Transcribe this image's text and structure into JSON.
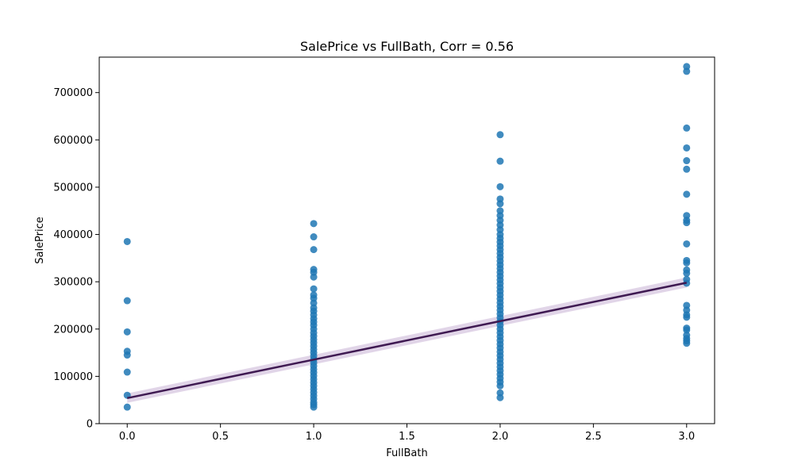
{
  "chart_data": {
    "type": "scatter",
    "title": "SalePrice vs FullBath, Corr = 0.56",
    "xlabel": "FullBath",
    "ylabel": "SalePrice",
    "xlim": [
      -0.15,
      3.15
    ],
    "ylim": [
      0,
      775000
    ],
    "x_ticks": [
      0.0,
      0.5,
      1.0,
      1.5,
      2.0,
      2.5,
      3.0
    ],
    "x_tick_labels": [
      "0.0",
      "0.5",
      "1.0",
      "1.5",
      "2.0",
      "2.5",
      "3.0"
    ],
    "y_ticks": [
      0,
      100000,
      200000,
      300000,
      400000,
      500000,
      600000,
      700000
    ],
    "y_tick_labels": [
      "0",
      "100000",
      "200000",
      "300000",
      "400000",
      "500000",
      "600000",
      "700000"
    ],
    "grid": false,
    "point_color": "#1f77b4",
    "line_color": "#3f1a52",
    "ci_color": "#c9b3d6",
    "points": [
      {
        "x": 0,
        "y": 385000
      },
      {
        "x": 0,
        "y": 260000
      },
      {
        "x": 0,
        "y": 194000
      },
      {
        "x": 0,
        "y": 153000
      },
      {
        "x": 0,
        "y": 145000
      },
      {
        "x": 0,
        "y": 109000
      },
      {
        "x": 0,
        "y": 60000
      },
      {
        "x": 0,
        "y": 35000
      },
      {
        "x": 1,
        "y": 423000
      },
      {
        "x": 1,
        "y": 395000
      },
      {
        "x": 1,
        "y": 368000
      },
      {
        "x": 1,
        "y": 326000
      },
      {
        "x": 1,
        "y": 320000
      },
      {
        "x": 1,
        "y": 310000
      },
      {
        "x": 1,
        "y": 285000
      },
      {
        "x": 1,
        "y": 272000
      },
      {
        "x": 1,
        "y": 265000
      },
      {
        "x": 1,
        "y": 255000
      },
      {
        "x": 1,
        "y": 245000
      },
      {
        "x": 1,
        "y": 238000
      },
      {
        "x": 1,
        "y": 230000
      },
      {
        "x": 1,
        "y": 222000
      },
      {
        "x": 1,
        "y": 215000
      },
      {
        "x": 1,
        "y": 208000
      },
      {
        "x": 1,
        "y": 200000
      },
      {
        "x": 1,
        "y": 192000
      },
      {
        "x": 1,
        "y": 185000
      },
      {
        "x": 1,
        "y": 178000
      },
      {
        "x": 1,
        "y": 171000
      },
      {
        "x": 1,
        "y": 164000
      },
      {
        "x": 1,
        "y": 157000
      },
      {
        "x": 1,
        "y": 150000
      },
      {
        "x": 1,
        "y": 143000
      },
      {
        "x": 1,
        "y": 136000
      },
      {
        "x": 1,
        "y": 129000
      },
      {
        "x": 1,
        "y": 122000
      },
      {
        "x": 1,
        "y": 115000
      },
      {
        "x": 1,
        "y": 108000
      },
      {
        "x": 1,
        "y": 101000
      },
      {
        "x": 1,
        "y": 94000
      },
      {
        "x": 1,
        "y": 87000
      },
      {
        "x": 1,
        "y": 80000
      },
      {
        "x": 1,
        "y": 73000
      },
      {
        "x": 1,
        "y": 66000
      },
      {
        "x": 1,
        "y": 59000
      },
      {
        "x": 1,
        "y": 52000
      },
      {
        "x": 1,
        "y": 45000
      },
      {
        "x": 1,
        "y": 40000
      },
      {
        "x": 1,
        "y": 35000
      },
      {
        "x": 2,
        "y": 611000
      },
      {
        "x": 2,
        "y": 555000
      },
      {
        "x": 2,
        "y": 501000
      },
      {
        "x": 2,
        "y": 475000
      },
      {
        "x": 2,
        "y": 465000
      },
      {
        "x": 2,
        "y": 450000
      },
      {
        "x": 2,
        "y": 440000
      },
      {
        "x": 2,
        "y": 430000
      },
      {
        "x": 2,
        "y": 420000
      },
      {
        "x": 2,
        "y": 410000
      },
      {
        "x": 2,
        "y": 400000
      },
      {
        "x": 2,
        "y": 392000
      },
      {
        "x": 2,
        "y": 384000
      },
      {
        "x": 2,
        "y": 376000
      },
      {
        "x": 2,
        "y": 368000
      },
      {
        "x": 2,
        "y": 360000
      },
      {
        "x": 2,
        "y": 352000
      },
      {
        "x": 2,
        "y": 344000
      },
      {
        "x": 2,
        "y": 336000
      },
      {
        "x": 2,
        "y": 328000
      },
      {
        "x": 2,
        "y": 320000
      },
      {
        "x": 2,
        "y": 312000
      },
      {
        "x": 2,
        "y": 304000
      },
      {
        "x": 2,
        "y": 296000
      },
      {
        "x": 2,
        "y": 288000
      },
      {
        "x": 2,
        "y": 280000
      },
      {
        "x": 2,
        "y": 272000
      },
      {
        "x": 2,
        "y": 264000
      },
      {
        "x": 2,
        "y": 256000
      },
      {
        "x": 2,
        "y": 248000
      },
      {
        "x": 2,
        "y": 240000
      },
      {
        "x": 2,
        "y": 232000
      },
      {
        "x": 2,
        "y": 224000
      },
      {
        "x": 2,
        "y": 216000
      },
      {
        "x": 2,
        "y": 208000
      },
      {
        "x": 2,
        "y": 200000
      },
      {
        "x": 2,
        "y": 192000
      },
      {
        "x": 2,
        "y": 184000
      },
      {
        "x": 2,
        "y": 176000
      },
      {
        "x": 2,
        "y": 168000
      },
      {
        "x": 2,
        "y": 160000
      },
      {
        "x": 2,
        "y": 152000
      },
      {
        "x": 2,
        "y": 144000
      },
      {
        "x": 2,
        "y": 136000
      },
      {
        "x": 2,
        "y": 128000
      },
      {
        "x": 2,
        "y": 120000
      },
      {
        "x": 2,
        "y": 112000
      },
      {
        "x": 2,
        "y": 104000
      },
      {
        "x": 2,
        "y": 96000
      },
      {
        "x": 2,
        "y": 88000
      },
      {
        "x": 2,
        "y": 80000
      },
      {
        "x": 2,
        "y": 65000
      },
      {
        "x": 2,
        "y": 55000
      },
      {
        "x": 3,
        "y": 755000
      },
      {
        "x": 3,
        "y": 745000
      },
      {
        "x": 3,
        "y": 625000
      },
      {
        "x": 3,
        "y": 583000
      },
      {
        "x": 3,
        "y": 556000
      },
      {
        "x": 3,
        "y": 538000
      },
      {
        "x": 3,
        "y": 485000
      },
      {
        "x": 3,
        "y": 440000
      },
      {
        "x": 3,
        "y": 430000
      },
      {
        "x": 3,
        "y": 425000
      },
      {
        "x": 3,
        "y": 380000
      },
      {
        "x": 3,
        "y": 345000
      },
      {
        "x": 3,
        "y": 340000
      },
      {
        "x": 3,
        "y": 325000
      },
      {
        "x": 3,
        "y": 318000
      },
      {
        "x": 3,
        "y": 305000
      },
      {
        "x": 3,
        "y": 297000
      },
      {
        "x": 3,
        "y": 250000
      },
      {
        "x": 3,
        "y": 240000
      },
      {
        "x": 3,
        "y": 230000
      },
      {
        "x": 3,
        "y": 225000
      },
      {
        "x": 3,
        "y": 202000
      },
      {
        "x": 3,
        "y": 198000
      },
      {
        "x": 3,
        "y": 187000
      },
      {
        "x": 3,
        "y": 180000
      },
      {
        "x": 3,
        "y": 175000
      },
      {
        "x": 3,
        "y": 170000
      }
    ],
    "regression": {
      "x": [
        0,
        3
      ],
      "y": [
        54000,
        298000
      ],
      "ci_lower": [
        44000,
        288000
      ],
      "ci_upper": [
        64000,
        309000
      ]
    }
  }
}
